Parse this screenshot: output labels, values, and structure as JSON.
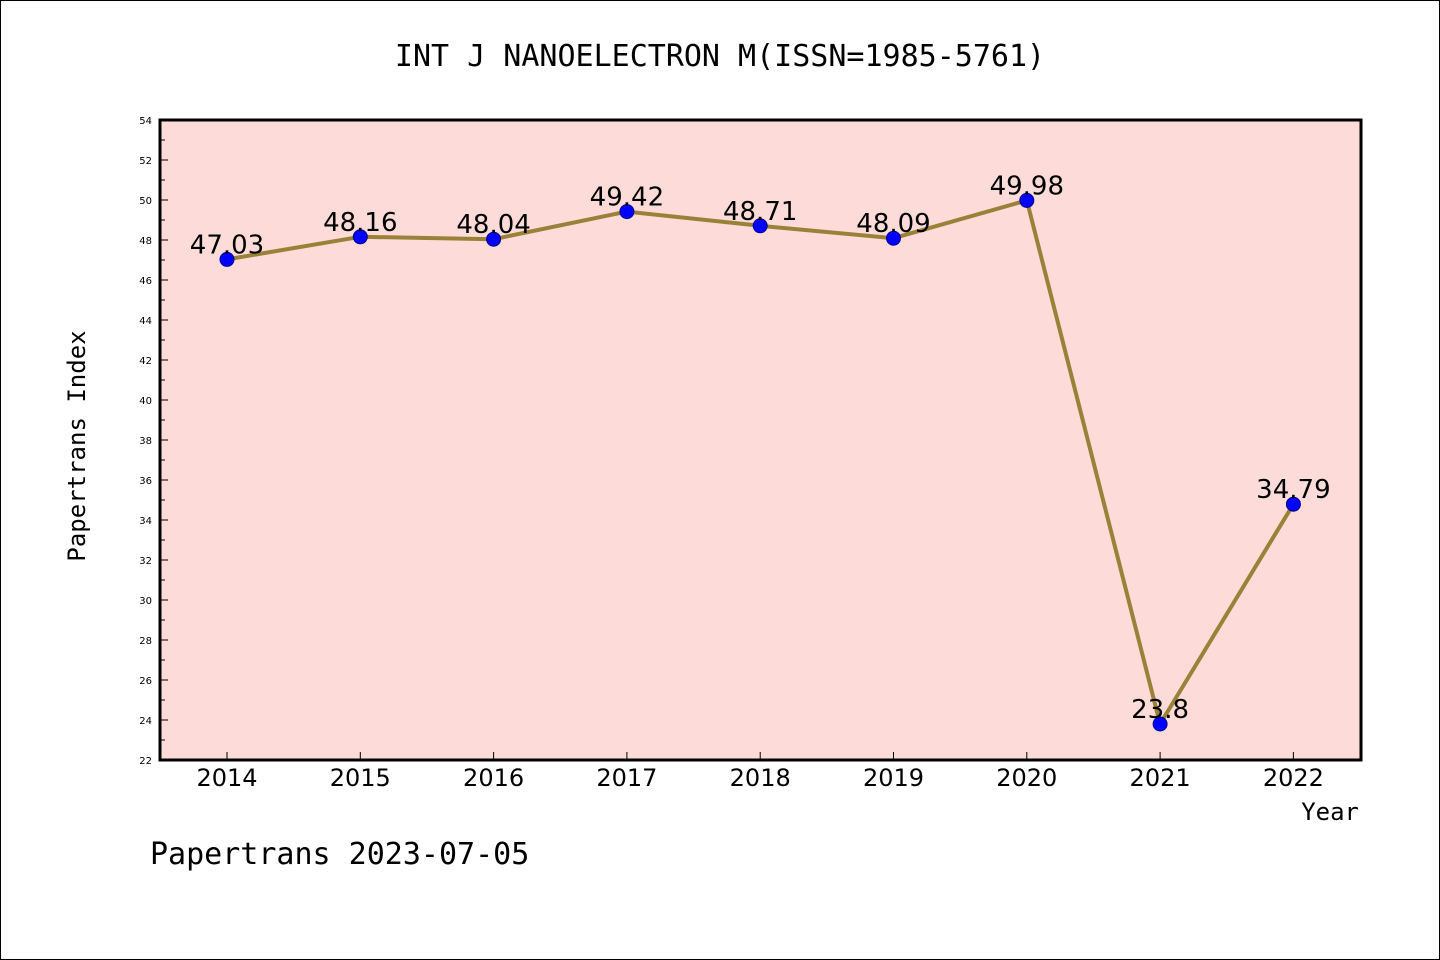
{
  "chart_data": {
    "type": "line",
    "title": "INT J NANOELECTRON M(ISSN=1985-5761)",
    "xlabel": "Year",
    "ylabel": "Papertrans Index",
    "categories": [
      "2014",
      "2015",
      "2016",
      "2017",
      "2018",
      "2019",
      "2020",
      "2021",
      "2022"
    ],
    "series": [
      {
        "values": [
          47.03,
          48.16,
          48.04,
          49.42,
          48.71,
          48.09,
          49.98,
          23.8,
          34.79
        ],
        "data_labels": [
          "47.03",
          "48.16",
          "48.04",
          "49.42",
          "48.71",
          "48.09",
          "49.98",
          "23.8",
          "34.79"
        ]
      }
    ],
    "ylim": [
      22,
      54
    ],
    "yticks": [
      "22",
      "24",
      "26",
      "28",
      "30",
      "32",
      "34",
      "36",
      "38",
      "40",
      "42",
      "44",
      "46",
      "48",
      "50",
      "52",
      "54"
    ],
    "grid": false,
    "legend": "none"
  },
  "footer": "Papertrans 2023-07-05",
  "colors": {
    "plot_background": "#fddbd9",
    "line": "#9a8138",
    "marker": "#0000ff",
    "marker_edge": "#00008b"
  }
}
